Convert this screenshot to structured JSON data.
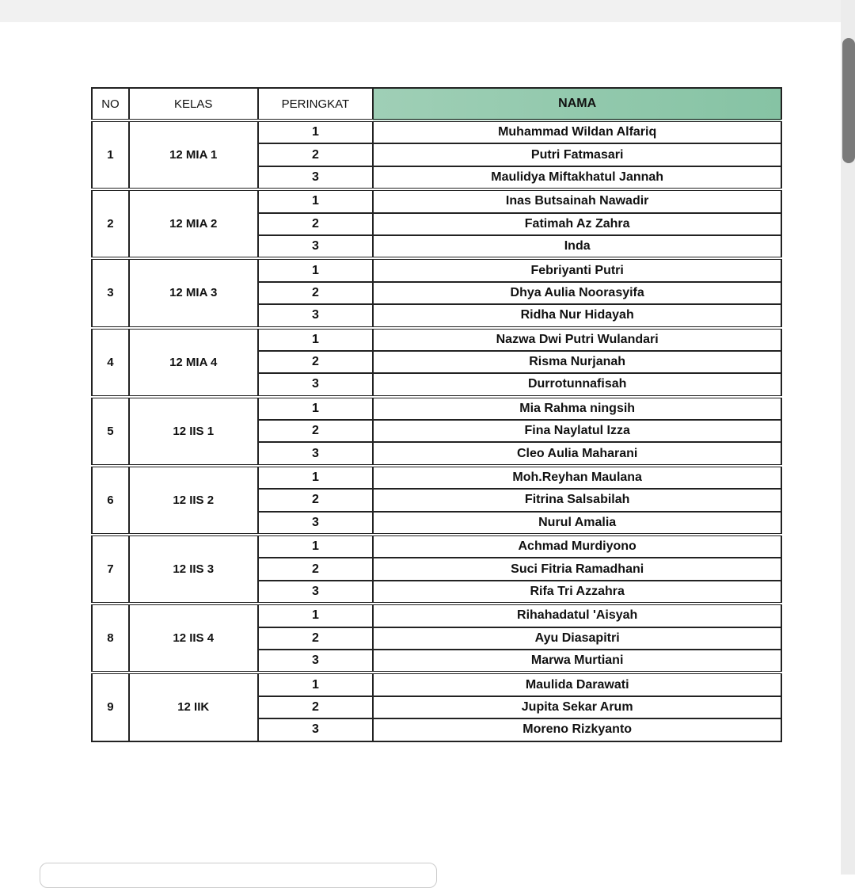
{
  "table": {
    "headers": {
      "no": "NO",
      "kelas": "KELAS",
      "peringkat": "PERINGKAT",
      "nama": "NAMA"
    },
    "header_accent_color": "#8fc9ab",
    "groups": [
      {
        "no": "1",
        "kelas": "12 MIA 1",
        "rows": [
          {
            "peringkat": "1",
            "nama": "Muhammad Wildan Alfariq"
          },
          {
            "peringkat": "2",
            "nama": "Putri Fatmasari"
          },
          {
            "peringkat": "3",
            "nama": "Maulidya Miftakhatul Jannah"
          }
        ]
      },
      {
        "no": "2",
        "kelas": "12 MIA 2",
        "rows": [
          {
            "peringkat": "1",
            "nama": "Inas Butsainah Nawadir"
          },
          {
            "peringkat": "2",
            "nama": "Fatimah Az Zahra"
          },
          {
            "peringkat": "3",
            "nama": "Inda"
          }
        ]
      },
      {
        "no": "3",
        "kelas": "12 MIA 3",
        "rows": [
          {
            "peringkat": "1",
            "nama": "Febriyanti Putri"
          },
          {
            "peringkat": "2",
            "nama": "Dhya Aulia Noorasyifa"
          },
          {
            "peringkat": "3",
            "nama": "Ridha Nur Hidayah"
          }
        ]
      },
      {
        "no": "4",
        "kelas": "12 MIA 4",
        "rows": [
          {
            "peringkat": "1",
            "nama": "Nazwa Dwi Putri Wulandari"
          },
          {
            "peringkat": "2",
            "nama": "Risma Nurjanah"
          },
          {
            "peringkat": "3",
            "nama": "Durrotunnafisah"
          }
        ]
      },
      {
        "no": "5",
        "kelas": "12 IIS 1",
        "rows": [
          {
            "peringkat": "1",
            "nama": "Mia Rahma ningsih"
          },
          {
            "peringkat": "2",
            "nama": "Fina Naylatul Izza"
          },
          {
            "peringkat": "3",
            "nama": "Cleo Aulia Maharani"
          }
        ]
      },
      {
        "no": "6",
        "kelas": "12 IIS 2",
        "rows": [
          {
            "peringkat": "1",
            "nama": "Moh.Reyhan Maulana"
          },
          {
            "peringkat": "2",
            "nama": "Fitrina Salsabilah"
          },
          {
            "peringkat": "3",
            "nama": "Nurul Amalia"
          }
        ]
      },
      {
        "no": "7",
        "kelas": "12 IIS 3",
        "rows": [
          {
            "peringkat": "1",
            "nama": "Achmad Murdiyono"
          },
          {
            "peringkat": "2",
            "nama": "Suci Fitria Ramadhani"
          },
          {
            "peringkat": "3",
            "nama": "Rifa Tri Azzahra"
          }
        ]
      },
      {
        "no": "8",
        "kelas": "12 IIS 4",
        "rows": [
          {
            "peringkat": "1",
            "nama": "Rihahadatul 'Aisyah"
          },
          {
            "peringkat": "2",
            "nama": "Ayu Diasapitri"
          },
          {
            "peringkat": "3",
            "nama": "Marwa Murtiani"
          }
        ]
      },
      {
        "no": "9",
        "kelas": "12 IIK",
        "rows": [
          {
            "peringkat": "1",
            "nama": "Maulida Darawati"
          },
          {
            "peringkat": "2",
            "nama": "Jupita Sekar Arum"
          },
          {
            "peringkat": "3",
            "nama": "Moreno Rizkyanto"
          }
        ]
      }
    ]
  }
}
